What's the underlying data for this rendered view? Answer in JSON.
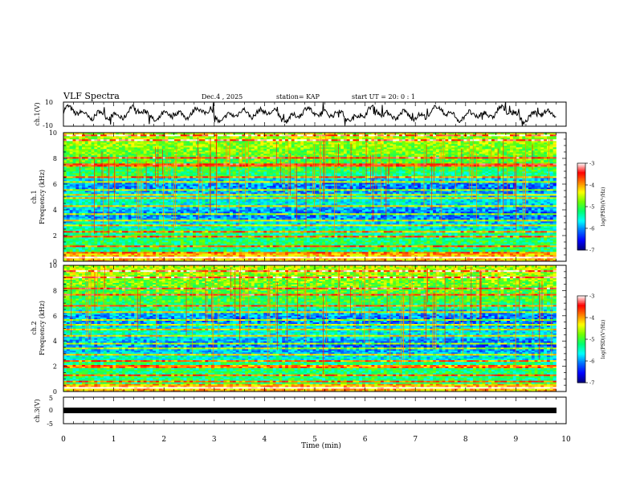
{
  "header": {
    "title": "VLF Spectra",
    "date": "Dec.4 , 2025",
    "station": "station= KAP",
    "start_ut": "start  UT =   20: 0  : 1"
  },
  "chart_data": [
    {
      "type": "line",
      "name": "ch1-waveform",
      "ylabel": "ch.1(V)",
      "ylim": [
        -10,
        10
      ],
      "yticks": [
        "10",
        "-10"
      ],
      "xlim": [
        0,
        10
      ],
      "description_values": {
        "mean": 0,
        "amplitude_approx": 6
      }
    },
    {
      "type": "heatmap",
      "name": "ch1-spectrogram",
      "ylabel_top": "ch.1",
      "ylabel": "Frequency (kHz)",
      "ylim": [
        0,
        10
      ],
      "yticks": [
        "0",
        "2",
        "4",
        "6",
        "8",
        "10"
      ],
      "xlim": [
        0,
        10
      ],
      "data_end_min": 9.8,
      "colorbar": {
        "label": "log(PSD)(V²/Hz)",
        "range": [
          -7,
          -3
        ],
        "ticks": [
          "-3",
          "-4",
          "-5",
          "-6",
          "-7"
        ]
      },
      "strong_bands_khz": [
        0.3,
        0.7,
        1.2,
        1.9,
        2.3,
        2.8,
        3.2,
        3.7,
        4.3,
        4.9,
        5.2,
        5.6,
        6.2,
        6.6,
        7.5,
        8.1,
        9.4,
        9.8
      ]
    },
    {
      "type": "heatmap",
      "name": "ch2-spectrogram",
      "ylabel_top": "ch.2",
      "ylabel": "Frequency (kHz)",
      "ylim": [
        0,
        10
      ],
      "yticks": [
        "0",
        "2",
        "4",
        "6",
        "8",
        "10"
      ],
      "xlim": [
        0,
        10
      ],
      "data_end_min": 9.8,
      "colorbar": {
        "label": "log(PSD)(V²/Hz)",
        "range": [
          -7,
          -3
        ],
        "ticks": [
          "-3",
          "-4",
          "-5",
          "-6",
          "-7"
        ]
      },
      "strong_bands_khz": [
        0.3,
        0.8,
        1.3,
        2.0,
        2.4,
        2.9,
        3.4,
        3.8,
        4.4,
        4.9,
        5.3,
        5.7,
        6.3,
        6.8,
        7.7,
        8.2,
        9.1,
        9.6
      ]
    },
    {
      "type": "line",
      "name": "ch3-waveform",
      "ylabel": "ch.3(V)",
      "ylim": [
        -5,
        5
      ],
      "yticks": [
        "5",
        "0",
        "-5"
      ],
      "xlim": [
        0,
        10
      ],
      "values_note": "near-constant thick trace",
      "level": -1
    }
  ],
  "xaxis": {
    "label": "Time (min)",
    "ticks": [
      "0",
      "1",
      "2",
      "3",
      "4",
      "5",
      "6",
      "7",
      "8",
      "9",
      "10"
    ]
  },
  "colors": {
    "colormap": [
      "#00007a",
      "#0000ff",
      "#0070ff",
      "#00ffff",
      "#00ff70",
      "#70ff00",
      "#ffff00",
      "#ff8000",
      "#ff0000",
      "#ffffff"
    ]
  }
}
